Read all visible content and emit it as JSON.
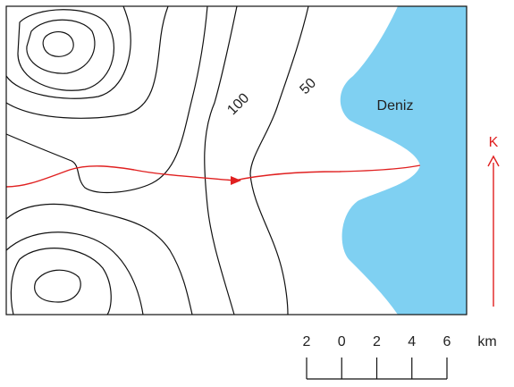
{
  "map": {
    "contour_labels": [
      100,
      50
    ],
    "sea_label": "Deniz",
    "north_label": "K"
  },
  "scale": {
    "labels": [
      2,
      0,
      2,
      4,
      6
    ],
    "unit": "km"
  }
}
